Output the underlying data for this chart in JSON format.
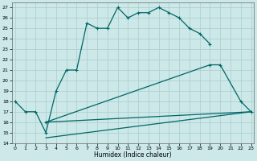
{
  "xlabel": "Humidex (Indice chaleur)",
  "bg_color": "#cce8e8",
  "grid_color": "#aacccc",
  "line_color": "#006666",
  "line1_x": [
    0,
    1,
    2,
    3,
    4,
    5,
    6,
    7,
    8,
    9,
    10,
    11,
    12,
    13,
    14,
    15,
    16,
    17,
    18,
    19
  ],
  "line1_y": [
    18,
    17,
    17,
    15,
    19,
    21,
    21,
    25.5,
    25,
    25,
    27,
    26,
    26.5,
    26.5,
    27,
    26.5,
    26,
    25,
    24.5,
    23.5
  ],
  "line2_x": [
    3,
    19,
    20,
    22,
    23
  ],
  "line2_y": [
    16,
    21.5,
    21.5,
    18,
    17
  ],
  "line3_x": [
    3,
    23
  ],
  "line3_y": [
    16,
    17
  ],
  "line4_x": [
    3,
    23
  ],
  "line4_y": [
    14.5,
    17
  ],
  "xlim": [
    -0.3,
    23.3
  ],
  "ylim": [
    14,
    27.5
  ],
  "yticks": [
    14,
    15,
    16,
    17,
    18,
    19,
    20,
    21,
    22,
    23,
    24,
    25,
    26,
    27
  ],
  "xticks": [
    0,
    1,
    2,
    3,
    4,
    5,
    6,
    7,
    8,
    9,
    10,
    11,
    12,
    13,
    14,
    15,
    16,
    17,
    18,
    19,
    20,
    21,
    22,
    23
  ]
}
